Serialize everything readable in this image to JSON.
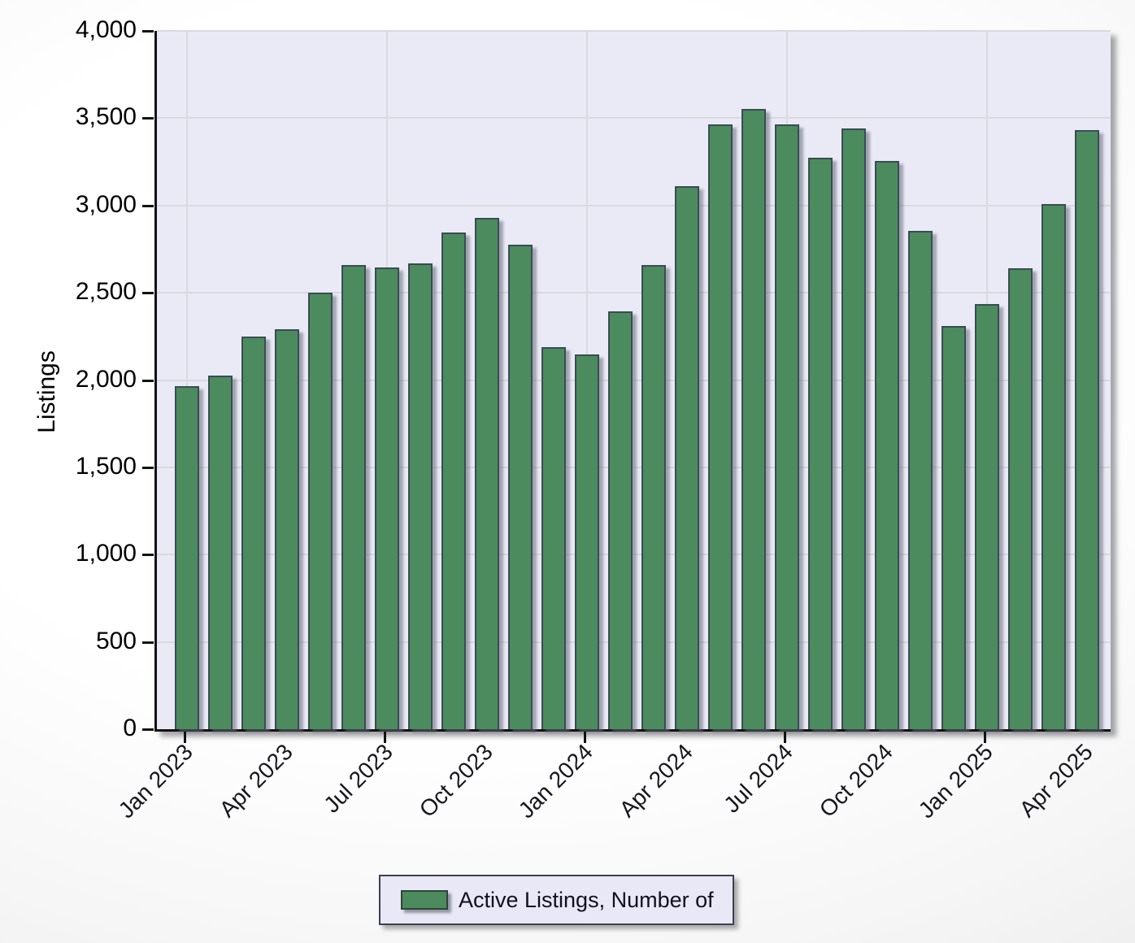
{
  "chart": {
    "y_axis_title": "Listings",
    "y_ticks": [
      "4,000",
      "3,500",
      "3,000",
      "2,500",
      "2,000",
      "1,500",
      "1,000",
      "500",
      "0"
    ]
  },
  "legend": {
    "label": "Active Listings, Number of",
    "swatch_color": "#4b8b5e"
  },
  "colors": {
    "bar_fill": "#4b8b5e",
    "bar_border": "#3a4c54",
    "plot_background": "#eaeaf6",
    "gridline": "#d9d9de",
    "axis": "#121212"
  },
  "chart_data": {
    "type": "bar",
    "title": "",
    "xlabel": "",
    "ylabel": "Listings",
    "ylim": [
      0,
      4000
    ],
    "y_tick_step": 500,
    "grid": true,
    "legend_position": "bottom",
    "categories": [
      "Jan 2023",
      "Feb 2023",
      "Mar 2023",
      "Apr 2023",
      "May 2023",
      "Jun 2023",
      "Jul 2023",
      "Aug 2023",
      "Sep 2023",
      "Oct 2023",
      "Nov 2023",
      "Dec 2023",
      "Jan 2024",
      "Feb 2024",
      "Mar 2024",
      "Apr 2024",
      "May 2024",
      "Jun 2024",
      "Jul 2024",
      "Aug 2024",
      "Sep 2024",
      "Oct 2024",
      "Nov 2024",
      "Dec 2024",
      "Jan 2025",
      "Feb 2025",
      "Mar 2025",
      "Apr 2025"
    ],
    "series": [
      {
        "name": "Active Listings, Number of",
        "values": [
          1965,
          2025,
          2250,
          2290,
          2500,
          2660,
          2645,
          2670,
          2845,
          2930,
          2775,
          2190,
          2145,
          2395,
          2660,
          3110,
          3465,
          3555,
          3465,
          3275,
          3440,
          3255,
          2855,
          2310,
          2435,
          2640,
          3010,
          3430
        ]
      }
    ],
    "x_label_indices": [
      0,
      3,
      6,
      9,
      12,
      15,
      18,
      21,
      24,
      27
    ],
    "x_tick_indices": [
      0,
      6,
      12,
      18,
      24
    ],
    "x_labels_shown": [
      "Jan 2023",
      "Apr 2023",
      "Jul 2023",
      "Oct 2023",
      "Jan 2024",
      "Apr 2024",
      "Jul 2024",
      "Oct 2024",
      "Jan 2025",
      "Apr 2025"
    ]
  }
}
